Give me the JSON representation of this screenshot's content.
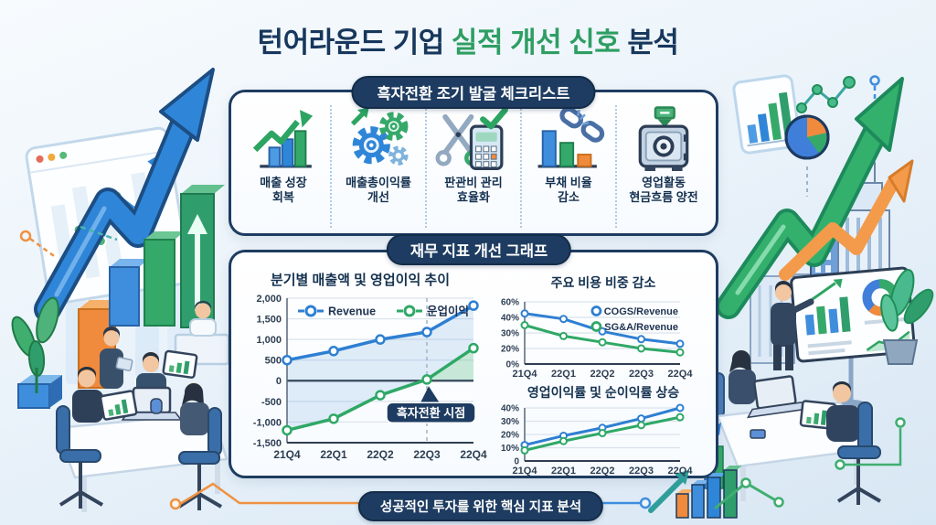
{
  "title": {
    "part1": "턴어라운드 기업 ",
    "part2": "실적 개선 신호",
    "part3": " 분석"
  },
  "checklist": {
    "header": "흑자전환 조기 발굴 체크리스트",
    "items": [
      {
        "icon": "growth-chart-icon",
        "label": "매출 성장\n회복"
      },
      {
        "icon": "gears-icon",
        "label": "매출총이익률\n개선"
      },
      {
        "icon": "scissors-calculator-icon",
        "label": "판관비 관리\n효율화"
      },
      {
        "icon": "broken-chain-icon",
        "label": "부채 비율\n감소"
      },
      {
        "icon": "safe-icon",
        "label": "영업활동\n현금흐름 양전"
      }
    ]
  },
  "graphs": {
    "header": "재무 지표 개선 그래프"
  },
  "footer": {
    "banner": "성공적인 투자를 위한 핵심 지표 분석"
  },
  "colors": {
    "navy": "#1e3c61",
    "title_navy": "#17375c",
    "title_green": "#2e9e63",
    "line_blue": "#2e7fd2",
    "line_green": "#2fa866",
    "fill_blue": "rgba(77,148,212,0.16)",
    "fill_green": "rgba(63,181,114,0.28)"
  },
  "chart_data": [
    {
      "type": "line",
      "title": "분기별 매출액 및 영업이익 추이",
      "categories": [
        "21Q4",
        "22Q1",
        "22Q2",
        "22Q3",
        "22Q4"
      ],
      "series": [
        {
          "name": "Revenue",
          "color": "#2e7fd2",
          "values": [
            500,
            720,
            1000,
            1180,
            1820
          ]
        },
        {
          "name": "운업이익",
          "color": "#2fa866",
          "values": [
            -1200,
            -920,
            -350,
            30,
            790
          ]
        }
      ],
      "ylim": [
        -1500,
        2000
      ],
      "yticks": [
        2000,
        1500,
        1000,
        500,
        0,
        -500,
        -1000,
        -1500
      ],
      "ytick_labels": [
        "2,000",
        "1,500",
        "1,000",
        "500",
        "0",
        "-500",
        "-1,000",
        "-1,500"
      ],
      "legend": "row",
      "zero_dark": true,
      "fill_between": true,
      "fill_above_zero": 1,
      "annotation": {
        "label": "흑자전환 시점",
        "x_index": 3
      }
    },
    {
      "type": "line",
      "title": "주요 비용 비중 감소",
      "categories": [
        "21Q4",
        "22Q1",
        "22Q2",
        "22Q3",
        "22Q4"
      ],
      "series": [
        {
          "name": "COGS/Revenue",
          "color": "#2e7fd2",
          "values": [
            45,
            39,
            31,
            26,
            23
          ]
        },
        {
          "name": "SG&A/Revenue",
          "color": "#2fa866",
          "values": [
            35,
            28,
            24,
            20,
            15
          ]
        }
      ],
      "ylim": [
        0,
        60
      ],
      "yticks": [
        60,
        40,
        30,
        20,
        0
      ],
      "ytick_labels": [
        "60%",
        "40%",
        "30%",
        "20%",
        "0%"
      ],
      "legend": "right-col"
    },
    {
      "type": "line",
      "title": "영업이익률 및 순이익률 상승",
      "categories": [
        "21Q4",
        "22Q1",
        "22Q2",
        "22Q3",
        "22Q4"
      ],
      "series": [
        {
          "name": "영업이익률",
          "color": "#2e7fd2",
          "values": [
            12,
            19,
            25,
            32,
            40
          ]
        },
        {
          "name": "순이익률",
          "color": "#2fa866",
          "values": [
            8,
            15,
            21,
            27,
            33
          ]
        }
      ],
      "ylim": [
        0,
        40
      ],
      "yticks": [
        40,
        30,
        20,
        10,
        0
      ],
      "ytick_labels": [
        "40%",
        "30%",
        "20%",
        "10%",
        "0"
      ],
      "legend": "none"
    }
  ]
}
